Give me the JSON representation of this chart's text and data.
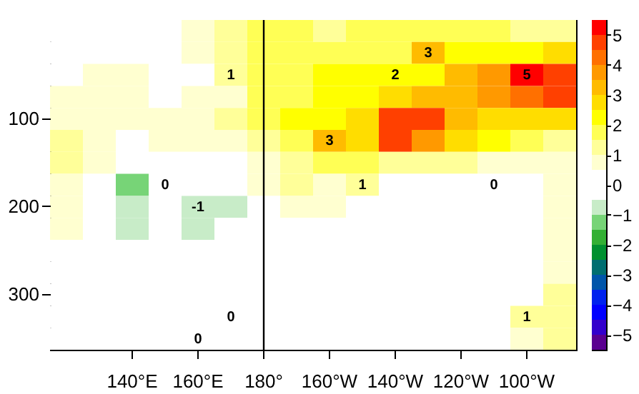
{
  "chart_data": {
    "type": "heatmap",
    "categories": [
      null,
      null,
      "140°E",
      null,
      "160°E",
      null,
      "180°",
      null,
      "160°W",
      null,
      "140°W",
      null,
      "120°W",
      null,
      "100°W",
      null
    ],
    "y_categories": [
      null,
      null,
      null,
      null,
      "100",
      null,
      null,
      null,
      "200",
      null,
      null,
      null,
      "300",
      null,
      null
    ],
    "cells": [
      [
        0.2,
        0.2,
        0.3,
        0.3,
        0.6,
        1.2,
        1.6,
        1.8,
        1.3,
        1.6,
        1.8,
        1.8,
        1.7,
        1.8,
        1.2,
        1.3
      ],
      [
        0.2,
        0.3,
        0.3,
        0.3,
        0.5,
        1.2,
        1.8,
        1.8,
        1.8,
        1.8,
        1.8,
        3,
        2.0,
        2.3,
        2.4,
        2.6
      ],
      [
        0.3,
        0.8,
        0.5,
        0.4,
        0.4,
        1,
        1.8,
        1.9,
        2.0,
        2.0,
        2,
        2.4,
        3.2,
        3.8,
        5,
        4.8
      ],
      [
        0.6,
        0.8,
        0.5,
        0.4,
        0.5,
        0.9,
        1.8,
        1.9,
        2.0,
        2.2,
        2.6,
        3.0,
        3.4,
        3.8,
        4.3,
        4.8
      ],
      [
        0.8,
        0.7,
        0.6,
        0.5,
        0.5,
        1.3,
        1.8,
        2.0,
        2.3,
        2.6,
        4.6,
        4.5,
        3.3,
        2.9,
        2.8,
        2.8
      ],
      [
        1.3,
        0.8,
        0.4,
        0.5,
        0.5,
        0.7,
        1.4,
        1.9,
        3,
        2.9,
        4.5,
        3.8,
        2.6,
        2.0,
        1.5,
        1.4
      ],
      [
        1.2,
        0.6,
        0.0,
        0.4,
        0.2,
        0.4,
        0.8,
        1.3,
        1.7,
        1.6,
        1.3,
        1.2,
        1.0,
        0.8,
        0.6,
        0.9
      ],
      [
        0.6,
        0.4,
        -1.3,
        0,
        -0.3,
        -0.1,
        0.6,
        1.0,
        0.9,
        1,
        0.3,
        0.2,
        0.4,
        0,
        -0.2,
        0.7
      ],
      [
        0.6,
        0.3,
        -0.9,
        -0.2,
        -1,
        -0.8,
        0.3,
        0.6,
        0.5,
        0.3,
        0.2,
        0.2,
        0.2,
        0.4,
        0.1,
        0.8
      ],
      [
        0.5,
        0.3,
        -0.6,
        0.1,
        -0.9,
        -0.5,
        0.2,
        0.3,
        0.2,
        0.2,
        0.2,
        0.2,
        0.2,
        0.3,
        0.3,
        0.8
      ],
      [
        0.3,
        0.2,
        -0.3,
        0.1,
        -0.5,
        -0.1,
        0.1,
        0.2,
        0.2,
        0.1,
        0.1,
        0.1,
        0.1,
        0.3,
        0.3,
        0.9
      ],
      [
        0.2,
        0.1,
        -0.1,
        0.1,
        -0.2,
        0.0,
        0.1,
        0.2,
        0.1,
        0.1,
        0.1,
        0.2,
        0.2,
        0.2,
        0.3,
        0.9
      ],
      [
        0.2,
        0.1,
        0.0,
        0.1,
        0.0,
        0.1,
        0.1,
        0.1,
        0.1,
        0.1,
        0.1,
        0.1,
        0.1,
        0.2,
        0.3,
        1.0
      ],
      [
        0.2,
        0.1,
        0.0,
        0.1,
        0.0,
        0,
        0.1,
        0.1,
        0.1,
        0.1,
        0.1,
        0.1,
        0.1,
        0.2,
        1,
        1.2
      ],
      [
        0.2,
        0.1,
        0.0,
        0.1,
        0.0,
        0.1,
        0.1,
        0.1,
        0.1,
        0.1,
        0.1,
        0.1,
        0.1,
        0.2,
        0.8,
        1.3
      ]
    ],
    "cell_labels": [
      [
        null,
        null,
        null,
        null,
        null,
        null,
        null,
        null,
        null,
        null,
        null,
        null,
        null,
        null,
        null,
        null
      ],
      [
        null,
        null,
        null,
        null,
        null,
        null,
        null,
        null,
        null,
        null,
        null,
        "3",
        null,
        null,
        null,
        null
      ],
      [
        null,
        null,
        null,
        null,
        null,
        "1",
        null,
        null,
        null,
        null,
        "2",
        null,
        null,
        null,
        "5",
        null
      ],
      [
        null,
        null,
        null,
        null,
        null,
        null,
        null,
        null,
        null,
        null,
        null,
        null,
        null,
        null,
        null,
        null
      ],
      [
        null,
        null,
        null,
        null,
        null,
        null,
        null,
        null,
        null,
        null,
        null,
        null,
        null,
        null,
        null,
        null
      ],
      [
        null,
        null,
        null,
        null,
        null,
        null,
        null,
        null,
        "3",
        null,
        null,
        null,
        null,
        null,
        null,
        null
      ],
      [
        null,
        null,
        null,
        null,
        null,
        null,
        null,
        null,
        null,
        null,
        null,
        null,
        null,
        null,
        null,
        null
      ],
      [
        null,
        null,
        null,
        "0",
        null,
        null,
        null,
        null,
        null,
        "1",
        null,
        null,
        null,
        "0",
        null,
        null
      ],
      [
        null,
        null,
        null,
        null,
        "-1",
        null,
        null,
        null,
        null,
        null,
        null,
        null,
        null,
        null,
        null,
        null
      ],
      [
        null,
        null,
        null,
        null,
        null,
        null,
        null,
        null,
        null,
        null,
        null,
        null,
        null,
        null,
        null,
        null
      ],
      [
        null,
        null,
        null,
        null,
        null,
        null,
        null,
        null,
        null,
        null,
        null,
        null,
        null,
        null,
        null,
        null
      ],
      [
        null,
        null,
        null,
        null,
        null,
        null,
        null,
        null,
        null,
        null,
        null,
        null,
        null,
        null,
        null,
        null
      ],
      [
        null,
        null,
        null,
        null,
        null,
        null,
        null,
        null,
        null,
        null,
        null,
        null,
        null,
        null,
        null,
        null
      ],
      [
        null,
        null,
        null,
        null,
        null,
        "0",
        null,
        null,
        null,
        null,
        null,
        null,
        null,
        null,
        "1",
        null
      ],
      [
        null,
        null,
        null,
        null,
        "0",
        null,
        null,
        null,
        null,
        null,
        null,
        null,
        null,
        null,
        null,
        null
      ]
    ],
    "clim": [
      -5.5,
      5.5
    ],
    "cticks": [
      -5,
      -4,
      -3,
      -2,
      -1,
      0,
      1,
      2,
      3,
      4,
      5
    ],
    "ref_lines": [
      {
        "axis": "x",
        "value": "180°"
      }
    ]
  }
}
